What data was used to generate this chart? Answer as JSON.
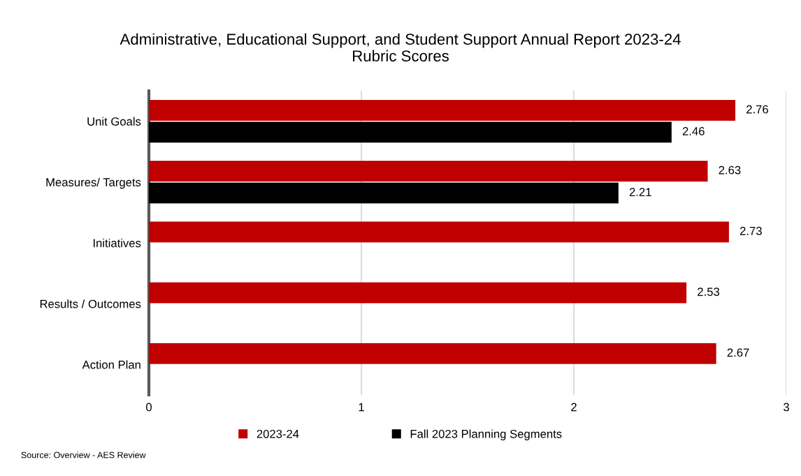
{
  "chart_data": {
    "type": "bar",
    "orientation": "horizontal",
    "title": "Administrative, Educational Support, and Student Support Annual Report 2023-24\nRubric Scores",
    "categories": [
      "Unit Goals",
      "Measures/ Targets",
      "Initiatives",
      "Results / Outcomes",
      "Action Plan"
    ],
    "series": [
      {
        "name": "2023-24",
        "color": "#c00000",
        "values": [
          2.76,
          2.63,
          2.73,
          2.53,
          2.67
        ]
      },
      {
        "name": "Fall 2023 Planning Segments",
        "color": "#000000",
        "values": [
          2.46,
          2.21,
          null,
          null,
          null
        ]
      }
    ],
    "xlim": [
      0,
      3
    ],
    "xticks": [
      0,
      1,
      2,
      3
    ],
    "grid": "x",
    "legend": "bottom",
    "data_labels": true,
    "annotations": [
      "Source: Overview - AES Review"
    ]
  }
}
